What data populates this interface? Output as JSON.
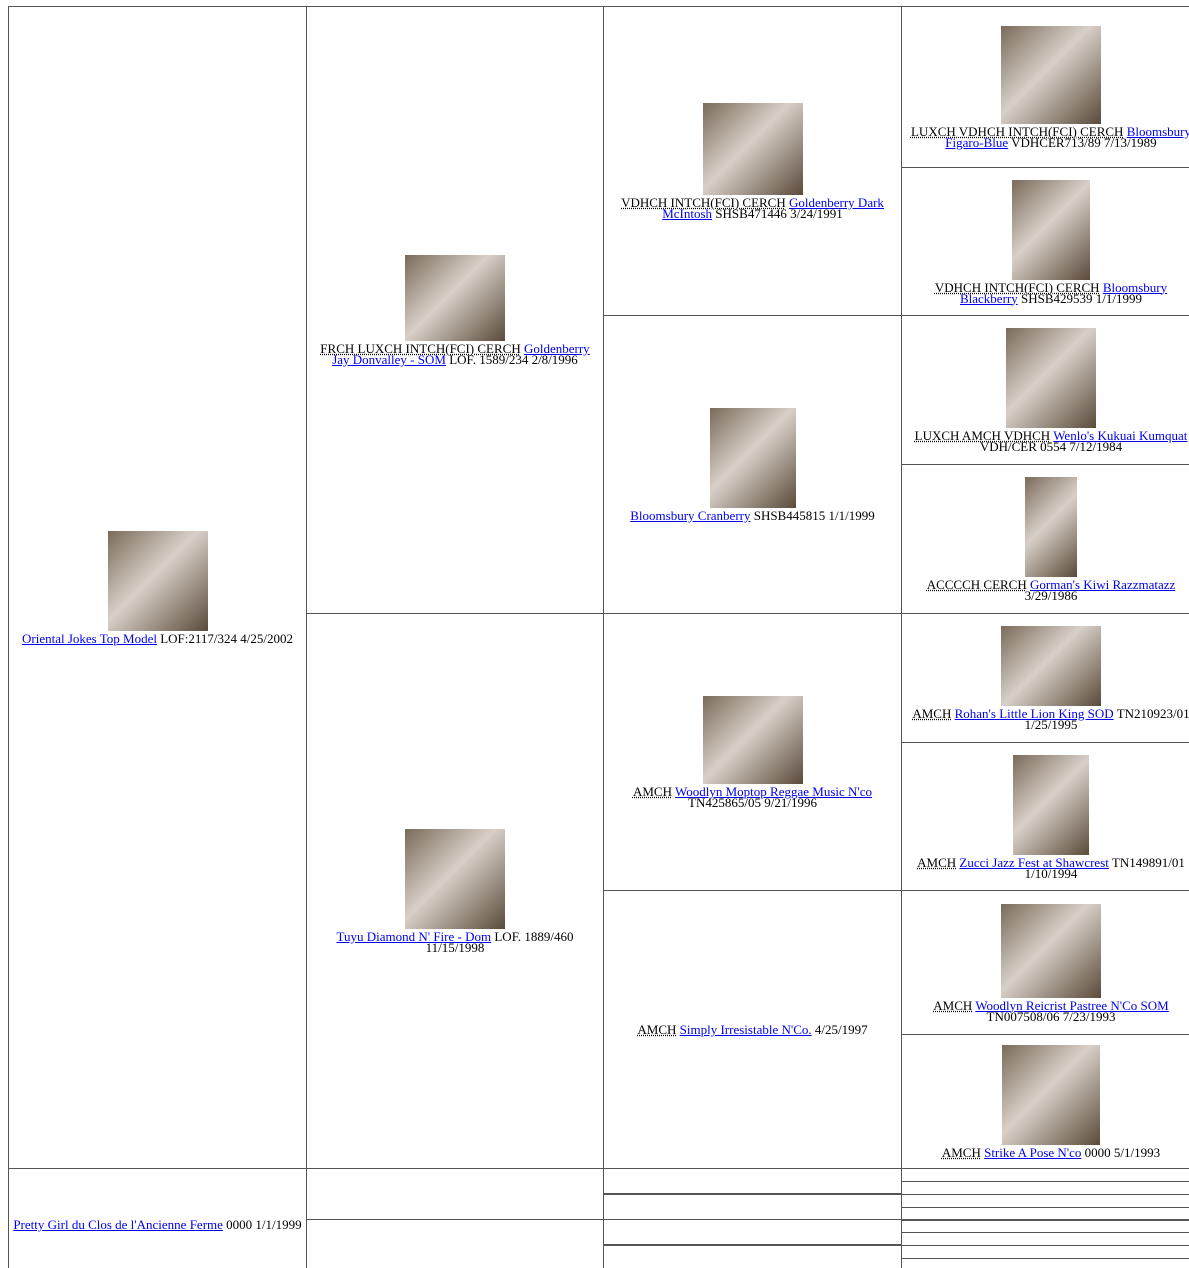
{
  "pedigree": [
    {
      "name": "Oriental Jokes Top Model",
      "details": "LOF:2117/324 4/25/2002"
    },
    {
      "title": "FRCH LUXCH INTCH(FCI) CERCH",
      "name": "Goldenberry Jay Donvalley - SOM",
      "details": "LOF. 1589/234 2/8/1996"
    },
    {
      "name": "Tuyu Diamond N' Fire - Dom",
      "details": "LOF. 1889/460 11/15/1998"
    },
    {
      "title": "VDHCH INTCH(FCI) CERCH",
      "name": "Goldenberry Dark McIntosh",
      "details": "SHSB471446 3/24/1991"
    },
    {
      "name": "Bloomsbury Cranberry",
      "details": "SHSB445815 1/1/1999"
    },
    {
      "title": "AMCH",
      "name": "Woodlyn Moptop Reggae Music N'co",
      "details": "TN425865/05 9/21/1996"
    },
    {
      "title": "AMCH",
      "name": "Simply Irresistable N'Co.",
      "details": "4/25/1997"
    },
    {
      "title": "LUXCH VDHCH INTCH(FCI) CERCH",
      "name": "Bloomsbury Figaro-Blue",
      "details": "VDHCER713/89 7/13/1989"
    },
    {
      "title": "VDHCH INTCH(FCI) CERCH",
      "name": "Bloomsbury Blackberry",
      "details": "SHSB429539 1/1/1999"
    },
    {
      "title": "LUXCH AMCH VDHCH",
      "name": "Wenlo's Kukuai Kumquat",
      "details": "VDH/CER 0554 7/12/1984"
    },
    {
      "title": "ACCCCH CERCH",
      "name": "Gorman's Kiwi Razzmatazz",
      "details": "3/29/1986"
    },
    {
      "title": "AMCH",
      "name": "Rohan's Little Lion King SOD",
      "details": "TN210923/01 1/25/1995"
    },
    {
      "title": "AMCH",
      "name": "Zucci Jazz Fest at Shawcrest",
      "details": "TN149891/01 1/10/1994"
    },
    {
      "title": "AMCH",
      "name": "Woodlyn Reicrist Pastree N'Co SOM",
      "details": "TN007508/06 7/23/1993"
    },
    {
      "title": "AMCH",
      "name": "Strike A Pose N'co",
      "details": "0000 5/1/1993"
    },
    {
      "name": "Pretty Girl du Clos de l'Ancienne Ferme",
      "details": "0000 1/1/1999"
    }
  ]
}
